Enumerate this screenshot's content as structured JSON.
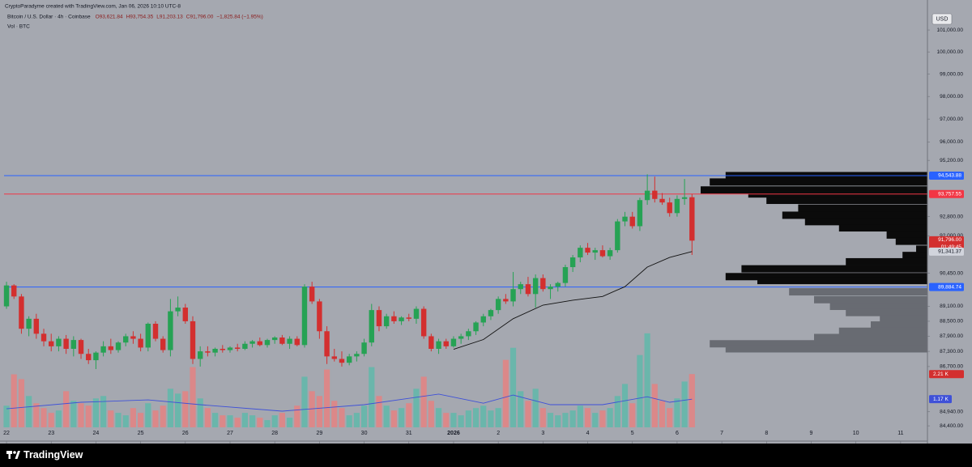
{
  "chart_data": {
    "type": "candlestick",
    "attribution": "CryptoParadyme created with TradingView.com, Jan 06, 2026 10:10 UTC-8",
    "title": "Bitcoin / U.S. Dollar · 4h · Coinbase",
    "ohlc_legend": [
      "O93,621.84",
      "H93,754.35",
      "L91,203.13",
      "C91,796.00",
      "−1,825.84 (−1.95%)"
    ],
    "volume_title": "Vol · BTC",
    "currency": "USD",
    "brand": "TradingView",
    "up_color": "#26a254",
    "down_color": "#d32f2f",
    "ylog": true,
    "ylim": [
      83817,
      102309
    ],
    "yticks": [
      {
        "value": 101000,
        "label": "101,000.00"
      },
      {
        "value": 100000,
        "label": "100,000.00"
      },
      {
        "value": 99000,
        "label": "99,000.00"
      },
      {
        "value": 98000,
        "label": "98,000.00"
      },
      {
        "value": 97000,
        "label": "97,000.00"
      },
      {
        "value": 96000,
        "label": "96,000.00"
      },
      {
        "value": 95200,
        "label": "95,200.00"
      },
      {
        "value": 92800,
        "label": "92,800.00"
      },
      {
        "value": 92000,
        "label": "92,000.00"
      },
      {
        "value": 90450,
        "label": "90,450.00"
      },
      {
        "value": 89100,
        "label": "89,100.00"
      },
      {
        "value": 88500,
        "label": "88,500.00"
      },
      {
        "value": 87900,
        "label": "87,900.00"
      },
      {
        "value": 87300,
        "label": "87,300.00"
      },
      {
        "value": 86700,
        "label": "86,700.00"
      },
      {
        "value": 84940,
        "label": "84,940.00"
      },
      {
        "value": 84400,
        "label": "84,400.00"
      }
    ],
    "xlim": [
      -0.33,
      123.6
    ],
    "xticks": [
      {
        "value": 0,
        "label": "22"
      },
      {
        "value": 6,
        "label": "23"
      },
      {
        "value": 12,
        "label": "24"
      },
      {
        "value": 18,
        "label": "25"
      },
      {
        "value": 24,
        "label": "26"
      },
      {
        "value": 30,
        "label": "27"
      },
      {
        "value": 36,
        "label": "28"
      },
      {
        "value": 42,
        "label": "29"
      },
      {
        "value": 48,
        "label": "30"
      },
      {
        "value": 54,
        "label": "31"
      },
      {
        "value": 60,
        "label": "2026"
      },
      {
        "value": 66,
        "label": "2"
      },
      {
        "value": 72,
        "label": "3"
      },
      {
        "value": 78,
        "label": "4"
      },
      {
        "value": 84,
        "label": "5"
      },
      {
        "value": 90,
        "label": "6"
      },
      {
        "value": 96,
        "label": "7"
      },
      {
        "value": 102,
        "label": "8"
      },
      {
        "value": 108,
        "label": "9"
      },
      {
        "value": 114,
        "label": "10"
      },
      {
        "value": 120,
        "label": "11"
      }
    ],
    "ohlc": [
      [
        89100,
        90100,
        89000,
        89950
      ],
      [
        89950,
        90000,
        89400,
        89500
      ],
      [
        89500,
        89600,
        88000,
        88200
      ],
      [
        88200,
        88700,
        87900,
        88600
      ],
      [
        88600,
        88800,
        87800,
        88000
      ],
      [
        88000,
        88200,
        87500,
        87700
      ],
      [
        87700,
        88000,
        87300,
        87500
      ],
      [
        87500,
        87900,
        87300,
        87800
      ],
      [
        87800,
        87950,
        87200,
        87400
      ],
      [
        87400,
        87900,
        87100,
        87750
      ],
      [
        87750,
        87800,
        87000,
        87200
      ],
      [
        87200,
        87400,
        86800,
        86950
      ],
      [
        86950,
        87300,
        86600,
        87250
      ],
      [
        87250,
        87700,
        87100,
        87500
      ],
      [
        87500,
        87800,
        87200,
        87350
      ],
      [
        87350,
        87700,
        87250,
        87650
      ],
      [
        87650,
        88000,
        87500,
        87900
      ],
      [
        87900,
        88100,
        87600,
        87800
      ],
      [
        87800,
        88000,
        87300,
        87450
      ],
      [
        87450,
        88450,
        87300,
        88400
      ],
      [
        88400,
        88500,
        87700,
        87800
      ],
      [
        87800,
        87900,
        87250,
        87350
      ],
      [
        87350,
        89400,
        87100,
        88900
      ],
      [
        88900,
        89500,
        88700,
        89050
      ],
      [
        89050,
        89200,
        88400,
        88500
      ],
      [
        88500,
        88700,
        86800,
        87000
      ],
      [
        87000,
        87500,
        86700,
        87300
      ],
      [
        87300,
        87500,
        87100,
        87250
      ],
      [
        87250,
        87450,
        87100,
        87400
      ],
      [
        87400,
        87550,
        87250,
        87350
      ],
      [
        87350,
        87500,
        87250,
        87450
      ],
      [
        87450,
        87600,
        87300,
        87400
      ],
      [
        87400,
        87700,
        87350,
        87600
      ],
      [
        87600,
        87750,
        87450,
        87700
      ],
      [
        87700,
        87850,
        87500,
        87550
      ],
      [
        87550,
        87800,
        87450,
        87750
      ],
      [
        87750,
        87900,
        87600,
        87850
      ],
      [
        87850,
        87950,
        87550,
        87600
      ],
      [
        87600,
        87900,
        87400,
        87800
      ],
      [
        87800,
        87900,
        87500,
        87550
      ],
      [
        87550,
        90000,
        87450,
        89900
      ],
      [
        89900,
        90100,
        89200,
        89300
      ],
      [
        89300,
        89400,
        87800,
        88100
      ],
      [
        88100,
        88300,
        86800,
        87100
      ],
      [
        87100,
        87400,
        86900,
        87000
      ],
      [
        87000,
        87300,
        86700,
        86850
      ],
      [
        86850,
        87200,
        86750,
        87100
      ],
      [
        87100,
        87300,
        86900,
        87200
      ],
      [
        87200,
        87800,
        87100,
        87650
      ],
      [
        87650,
        89200,
        87500,
        88950
      ],
      [
        88950,
        89100,
        88100,
        88300
      ],
      [
        88300,
        88800,
        88200,
        88700
      ],
      [
        88700,
        88900,
        88400,
        88500
      ],
      [
        88500,
        88700,
        88350,
        88650
      ],
      [
        88650,
        88800,
        88500,
        88600
      ],
      [
        88600,
        89100,
        88400,
        89000
      ],
      [
        89000,
        89100,
        87800,
        87900
      ],
      [
        87900,
        88000,
        87300,
        87400
      ],
      [
        87400,
        87800,
        87200,
        87700
      ],
      [
        87700,
        87800,
        87400,
        87500
      ],
      [
        87500,
        87900,
        87450,
        87800
      ],
      [
        87800,
        88000,
        87600,
        87900
      ],
      [
        87900,
        88200,
        87750,
        88100
      ],
      [
        88100,
        88500,
        87950,
        88450
      ],
      [
        88450,
        88800,
        88300,
        88700
      ],
      [
        88700,
        89000,
        88550,
        88950
      ],
      [
        88950,
        89500,
        88800,
        89400
      ],
      [
        89400,
        89600,
        89200,
        89300
      ],
      [
        89300,
        90500,
        89100,
        89800
      ],
      [
        89800,
        90100,
        89600,
        90000
      ],
      [
        90000,
        90300,
        89500,
        89600
      ],
      [
        89600,
        90400,
        89050,
        90250
      ],
      [
        90250,
        90400,
        89700,
        89800
      ],
      [
        89800,
        90000,
        89400,
        89900
      ],
      [
        89900,
        90100,
        89700,
        90050
      ],
      [
        90050,
        90800,
        89900,
        90700
      ],
      [
        90700,
        91200,
        90500,
        91100
      ],
      [
        91100,
        91600,
        90900,
        91500
      ],
      [
        91500,
        91700,
        91200,
        91300
      ],
      [
        91300,
        91500,
        91000,
        91400
      ],
      [
        91400,
        91600,
        91100,
        91150
      ],
      [
        91150,
        91500,
        91000,
        91400
      ],
      [
        91400,
        92700,
        91300,
        92600
      ],
      [
        92600,
        93000,
        92400,
        92800
      ],
      [
        92800,
        93000,
        92300,
        92400
      ],
      [
        92400,
        93600,
        92200,
        93500
      ],
      [
        93500,
        94600,
        93300,
        93900
      ],
      [
        93900,
        94500,
        93400,
        93550
      ],
      [
        93550,
        93800,
        93300,
        93400
      ],
      [
        93400,
        93600,
        92800,
        92950
      ],
      [
        92950,
        93700,
        92800,
        93550
      ],
      [
        93550,
        94400,
        93300,
        93621.84
      ],
      [
        93621.84,
        93754.35,
        91203.13,
        91796
      ]
    ],
    "last_price_label": "91,796.00",
    "countdown": "01:49:45",
    "price_lines": [
      {
        "value": 94543.88,
        "label": "94,543.88",
        "color": "#2962ff"
      },
      {
        "value": 93757.55,
        "label": "93,757.55",
        "color": "#f23645"
      },
      {
        "value": 89884.74,
        "label": "89,884.74",
        "color": "#2962ff"
      }
    ],
    "ma": {
      "color": "#111111",
      "last_label": "91,341.37",
      "x": [
        60,
        64,
        68,
        72,
        76,
        80,
        83,
        86,
        89,
        92
      ],
      "values": [
        87380,
        87770,
        88600,
        89150,
        89350,
        89500,
        89900,
        90700,
        91100,
        91341.37
      ]
    },
    "vol_ylim": [
      0,
      4.5
    ],
    "volume": {
      "up_color": "#5fb8aa",
      "down_color": "#e48383",
      "last_label": "2.21 K",
      "values": [
        0.9,
        2.2,
        2.0,
        1.3,
        1.0,
        0.8,
        0.6,
        0.7,
        1.5,
        1.1,
        1.0,
        0.9,
        1.2,
        1.3,
        0.7,
        0.6,
        0.5,
        0.8,
        0.6,
        1.0,
        0.7,
        0.9,
        1.6,
        1.4,
        1.5,
        2.5,
        1.2,
        0.8,
        0.6,
        0.5,
        0.5,
        0.4,
        0.6,
        0.5,
        0.4,
        0.3,
        0.5,
        0.6,
        0.4,
        0.9,
        2.1,
        1.5,
        1.3,
        2.4,
        1.1,
        0.8,
        0.5,
        0.6,
        0.9,
        2.5,
        1.3,
        0.9,
        0.7,
        0.8,
        1.0,
        1.6,
        2.1,
        1.1,
        0.8,
        0.6,
        0.6,
        0.5,
        0.7,
        0.8,
        0.9,
        0.7,
        0.8,
        2.8,
        3.3,
        1.5,
        1.1,
        1.6,
        0.8,
        0.6,
        0.5,
        0.6,
        0.7,
        0.9,
        0.8,
        0.6,
        0.7,
        0.8,
        1.3,
        1.8,
        1.0,
        3.0,
        3.9,
        1.8,
        1.1,
        0.8,
        1.2,
        1.9,
        2.21
      ]
    },
    "volume_ma": {
      "color": "#3f51d8",
      "last_label": "1.17 K",
      "x": [
        0,
        10,
        19,
        26,
        37,
        48,
        58,
        64,
        68,
        73,
        80,
        86,
        89,
        92
      ],
      "values": [
        0.77,
        1.04,
        1.14,
        0.94,
        0.67,
        0.94,
        1.38,
        1.0,
        1.34,
        0.94,
        0.94,
        1.27,
        1.04,
        1.17
      ]
    },
    "volume_profile": [
      {
        "color": "#0b0b0b",
        "prices": [
          94544,
          94270,
          93930,
          93760,
          93490,
          93160,
          92860,
          92590,
          92330,
          92030,
          91770,
          91440,
          91180,
          90920,
          90630,
          90310,
          90150
        ],
        "values": [
          89,
          96,
          100,
          79,
          71,
          57,
          64,
          54,
          39,
          18,
          14,
          5,
          11,
          36,
          82,
          89,
          75
        ]
      },
      {
        "color": "#686b72",
        "prices": [
          89690,
          89370,
          89100,
          88850,
          88600,
          88350,
          88100,
          87850,
          87600,
          87400
        ],
        "values": [
          61,
          50,
          43,
          36,
          21,
          25,
          39,
          50,
          96,
          89
        ]
      }
    ]
  }
}
